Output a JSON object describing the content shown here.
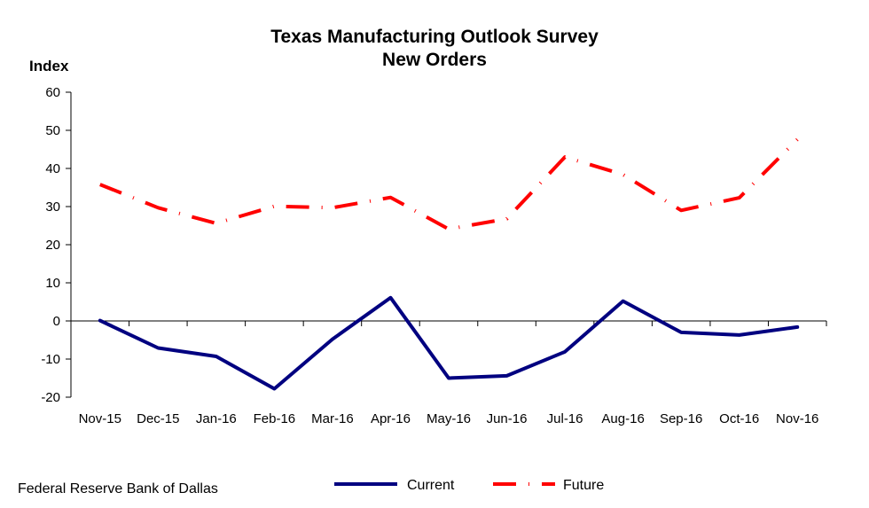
{
  "source": "Federal Reserve Bank of Dallas",
  "chart_data": {
    "type": "line",
    "title": "Texas Manufacturing Outlook Survey",
    "subtitle": "New Orders",
    "ylabel": "Index",
    "xlabel": "",
    "ylim": [
      -20,
      60
    ],
    "yticks": [
      60,
      50,
      40,
      30,
      20,
      10,
      0,
      -10,
      -20
    ],
    "categories": [
      "Nov-15",
      "Dec-15",
      "Jan-16",
      "Feb-16",
      "Mar-16",
      "Apr-16",
      "May-16",
      "Jun-16",
      "Jul-16",
      "Aug-16",
      "Sep-16",
      "Oct-16",
      "Nov-16"
    ],
    "grid": false,
    "legend": "bottom-center",
    "series": [
      {
        "name": "Current",
        "color": "#000080",
        "style": "solid",
        "values": [
          0.1,
          -7.1,
          -9.3,
          -17.8,
          -4.8,
          6.1,
          -15.0,
          -14.4,
          -8.1,
          5.2,
          -3.0,
          -3.7,
          -1.6
        ]
      },
      {
        "name": "Future",
        "color": "#ff0000",
        "style": "dash-dot",
        "values": [
          35.8,
          29.7,
          25.6,
          30.1,
          29.7,
          32.4,
          24.1,
          26.8,
          43.0,
          38.4,
          29.0,
          32.3,
          47.6
        ]
      }
    ]
  }
}
